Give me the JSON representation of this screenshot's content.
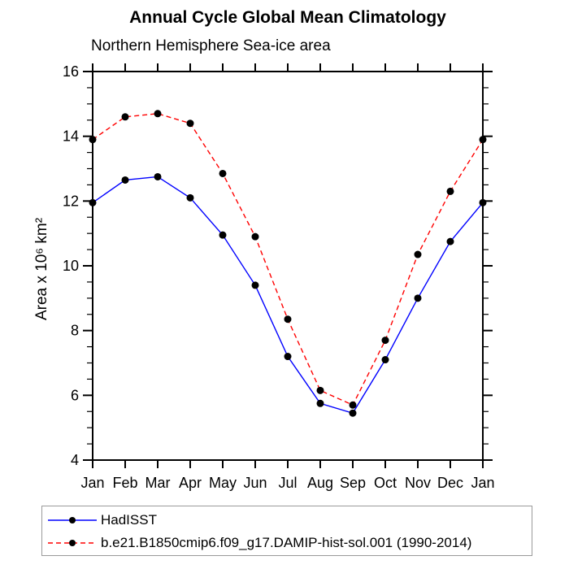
{
  "chart_data": {
    "type": "line",
    "title": "Annual Cycle Global Mean Climatology",
    "subtitle": "Northern Hemisphere Sea-ice area",
    "ylabel": "Area x 10⁶ km²",
    "xlabel": "",
    "categories": [
      "Jan",
      "Feb",
      "Mar",
      "Apr",
      "May",
      "Jun",
      "Jul",
      "Aug",
      "Sep",
      "Oct",
      "Nov",
      "Dec",
      "Jan"
    ],
    "ylim": [
      4,
      16
    ],
    "y_major_ticks": [
      4,
      6,
      8,
      10,
      12,
      14,
      16
    ],
    "y_minor_step": 0.5,
    "grid": false,
    "legend_position": "bottom-left-box",
    "axis_color": "#000000",
    "marker_color": "#000000",
    "series": [
      {
        "name": "HadISST",
        "color": "#0000ff",
        "style": "solid",
        "marker": "filled-circle",
        "values": [
          11.95,
          12.65,
          12.75,
          12.1,
          10.95,
          9.4,
          7.2,
          5.75,
          5.45,
          7.1,
          9.0,
          10.75,
          11.95
        ]
      },
      {
        "name": "b.e21.B1850cmip6.f09_g17.DAMIP-hist-sol.001 (1990-2014)",
        "color": "#ff0000",
        "style": "dashed",
        "marker": "filled-circle",
        "values": [
          13.9,
          14.6,
          14.7,
          14.4,
          12.85,
          10.9,
          8.35,
          6.15,
          5.7,
          7.7,
          10.35,
          12.3,
          13.9
        ]
      }
    ]
  }
}
